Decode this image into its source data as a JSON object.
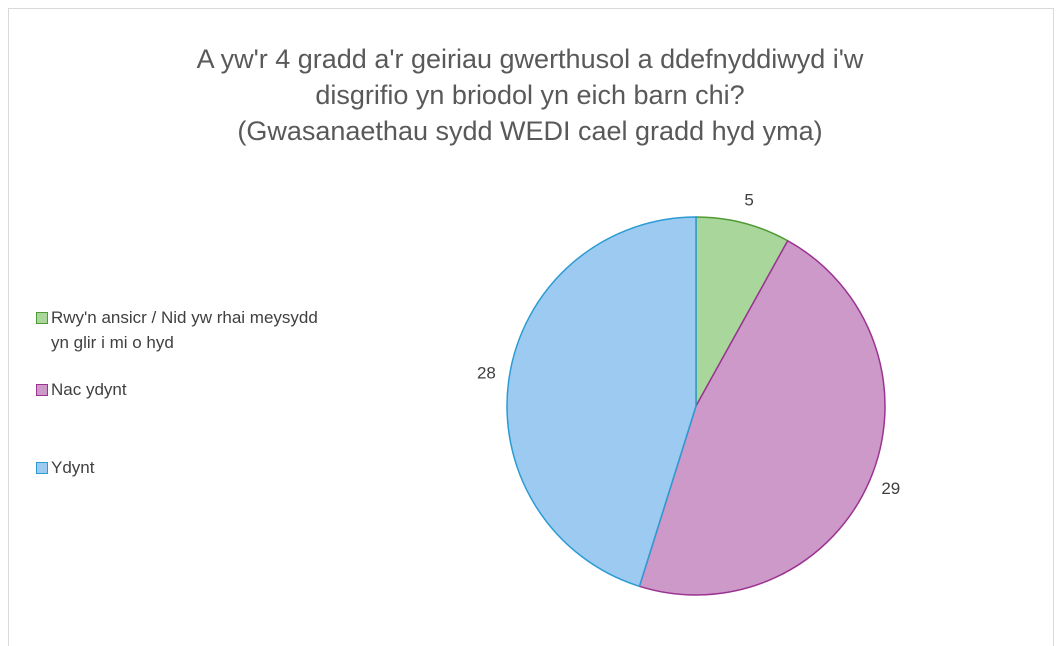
{
  "chart_data": {
    "type": "pie",
    "title": [
      "A yw'r 4 gradd a'r geiriau gwerthusol a ddefnyddiwyd i'w",
      "disgrifio yn briodol yn eich barn chi?",
      "(Gwasanaethau sydd WEDI cael gradd hyd yma)"
    ],
    "categories": [
      "Rwy'n ansicr / Nid yw rhai meysydd yn glir i mi o hyd",
      "Nac ydynt",
      "Ydynt"
    ],
    "values": [
      5,
      29,
      28
    ],
    "colors": [
      "#a9d69a",
      "#cc99c8",
      "#9dcaf0"
    ],
    "edge_colors": [
      "#4f9a35",
      "#9b3393",
      "#2b9bd3"
    ],
    "legend": "left"
  }
}
